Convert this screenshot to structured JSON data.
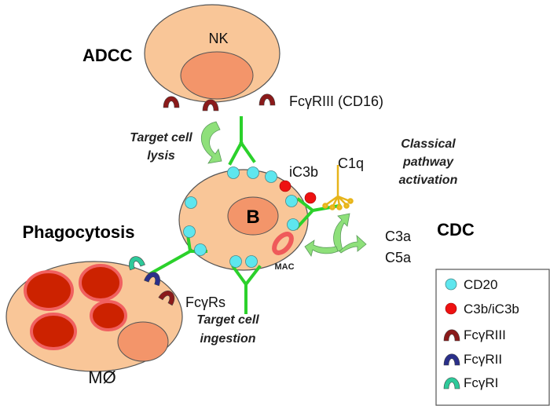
{
  "labels": {
    "adcc": "ADCC",
    "nk": "NK",
    "fcgriii_cd16": "FcγRIII (CD16)",
    "target_cell_lysis_1": "Target cell",
    "target_cell_lysis_2": "lysis",
    "classical_1": "Classical",
    "classical_2": "pathway",
    "classical_3": "activation",
    "ic3b": "iC3b",
    "c1q": "C1q",
    "b": "B",
    "cdc": "CDC",
    "c3a": "C3a",
    "c5a": "C5a",
    "mac": "MAC",
    "phagocytosis": "Phagocytosis",
    "fcgrs": "FcγRs",
    "mo": "MØ",
    "ingestion_1": "Target cell",
    "ingestion_2": "ingestion"
  },
  "legend": [
    {
      "label": "CD20",
      "color": "#5ee6ee"
    },
    {
      "label": "C3b/iC3b",
      "color": "#ee1111"
    },
    {
      "label": "FcγRIII",
      "color": "#8b1a1a"
    },
    {
      "label": "FcγRII",
      "color": "#2a2f8a"
    },
    {
      "label": "FcγRI",
      "color": "#2ec99a"
    }
  ],
  "colors": {
    "cell": "#f9c698",
    "nucleus": "#f3956a",
    "antibody": "#2bd12b",
    "c1q": "#e7b41a",
    "arrow": "#8ee07a",
    "granule": "#cc2200"
  }
}
